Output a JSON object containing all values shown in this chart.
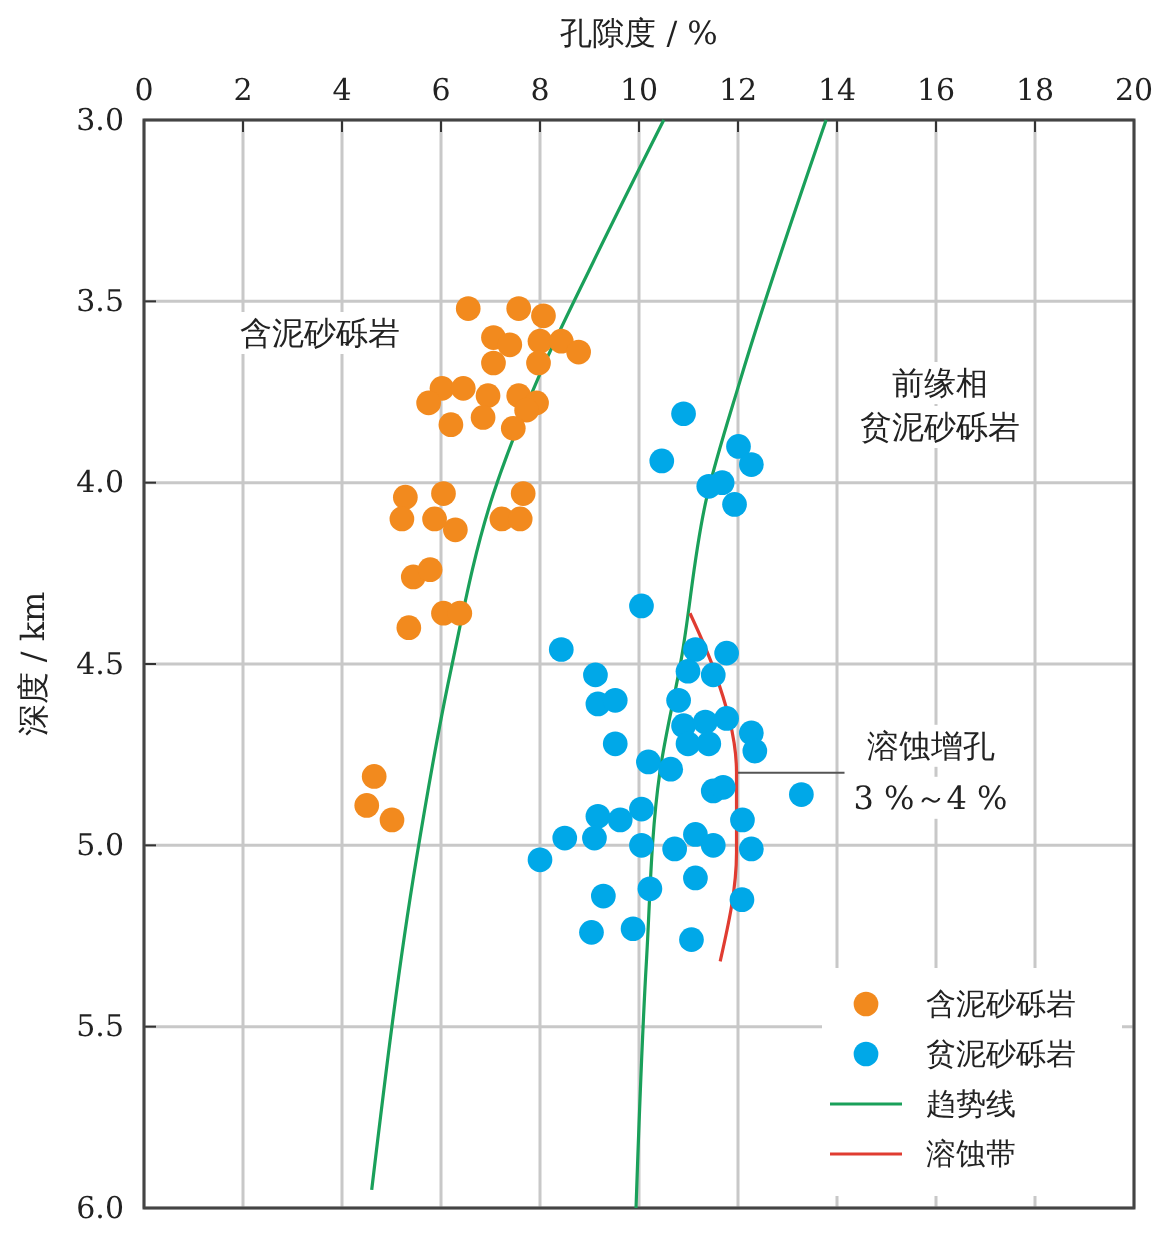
{
  "chart_data": {
    "type": "scatter",
    "xlabel": "孔隙度 / %",
    "ylabel": "深度 / km",
    "xlim": [
      0,
      20
    ],
    "xticks": [
      0,
      2,
      4,
      6,
      8,
      10,
      12,
      14,
      16,
      18,
      20
    ],
    "ylim": [
      6,
      3
    ],
    "yticks": [
      {
        "value": 3,
        "label": "3.0"
      },
      {
        "value": 3.5,
        "label": "3.5"
      },
      {
        "value": 4,
        "label": "4.0"
      },
      {
        "value": 4.5,
        "label": "4.5"
      },
      {
        "value": 5,
        "label": "5.0"
      },
      {
        "value": 5.5,
        "label": "5.5"
      },
      {
        "value": 6,
        "label": "6.0"
      }
    ],
    "grid": true,
    "legend": "bottom right",
    "marker": "circle",
    "series": [
      {
        "name": "含泥砂砾岩",
        "color": "#f28a1e",
        "x": [
          6.55,
          7.57,
          8.07,
          7.06,
          7.39,
          8.0,
          8.43,
          8.78,
          7.06,
          7.97,
          6.02,
          6.45,
          5.75,
          6.95,
          7.57,
          7.93,
          7.73,
          6.2,
          6.85,
          7.46,
          5.28,
          6.05,
          7.66,
          5.21,
          5.87,
          7.23,
          7.6,
          6.29,
          5.44,
          5.78,
          6.05,
          6.38,
          5.35,
          4.65,
          4.5,
          5.01
        ],
        "values": [
          3.52,
          3.52,
          3.54,
          3.6,
          3.62,
          3.61,
          3.61,
          3.64,
          3.67,
          3.67,
          3.74,
          3.74,
          3.78,
          3.76,
          3.76,
          3.78,
          3.8,
          3.84,
          3.82,
          3.85,
          4.04,
          4.03,
          4.03,
          4.1,
          4.1,
          4.1,
          4.1,
          4.13,
          4.26,
          4.24,
          4.36,
          4.36,
          4.4,
          4.81,
          4.89,
          4.93
        ]
      },
      {
        "name": "贫泥砂砾岩",
        "color": "#00a8e8",
        "x": [
          10.9,
          10.46,
          12.01,
          12.27,
          11.41,
          11.68,
          11.93,
          10.05,
          8.43,
          11.14,
          11.77,
          9.12,
          10.99,
          11.5,
          9.17,
          9.52,
          10.8,
          10.9,
          11.34,
          11.77,
          12.27,
          12.34,
          10.99,
          11.41,
          9.52,
          10.19,
          10.64,
          11.5,
          11.7,
          13.28,
          9.17,
          9.62,
          10.05,
          12.09,
          8.5,
          9.1,
          10.05,
          10.72,
          11.14,
          11.5,
          12.27,
          8.0,
          9.28,
          10.22,
          11.14,
          12.08,
          9.04,
          9.88,
          11.06
        ],
        "values": [
          3.81,
          3.94,
          3.9,
          3.95,
          4.01,
          4.0,
          4.06,
          4.34,
          4.46,
          4.46,
          4.47,
          4.53,
          4.52,
          4.53,
          4.61,
          4.6,
          4.6,
          4.67,
          4.66,
          4.65,
          4.69,
          4.74,
          4.72,
          4.72,
          4.72,
          4.77,
          4.79,
          4.85,
          4.84,
          4.86,
          4.92,
          4.93,
          4.9,
          4.93,
          4.98,
          4.98,
          5.0,
          5.01,
          4.97,
          5.0,
          5.01,
          5.04,
          5.14,
          5.12,
          5.09,
          5.15,
          5.24,
          5.23,
          5.26
        ]
      },
      {
        "name": "趋势线",
        "type": "line",
        "color": "#1aa05a",
        "marker": "none",
        "x": [
          10.5,
          9.08,
          8.0,
          7.06,
          6.18,
          5.5,
          4.6
        ],
        "values": [
          3.0,
          3.39,
          3.7,
          4.03,
          4.53,
          5.04,
          5.95
        ]
      },
      {
        "type": "line",
        "color": "#1aa05a",
        "marker": "none",
        "x": [
          13.78,
          12.04,
          11.37,
          10.85,
          10.42,
          10.15,
          9.94
        ],
        "values": [
          3.0,
          3.72,
          4.04,
          4.49,
          4.8,
          5.32,
          6.0
        ]
      },
      {
        "name": "溶蚀带",
        "type": "line",
        "color": "#e03c31",
        "marker": "none",
        "x": [
          11.03,
          11.5,
          11.97,
          11.97,
          11.64
        ],
        "values": [
          4.36,
          4.51,
          4.8,
          5.02,
          5.32
        ]
      }
    ],
    "annotations": [
      "含泥砂砾岩",
      "前缘相",
      "贫泥砂砾岩",
      {
        "text": "溶蚀增孔",
        "x": 11.97,
        "y": 4.8
      },
      "3 %～4 %"
    ]
  }
}
